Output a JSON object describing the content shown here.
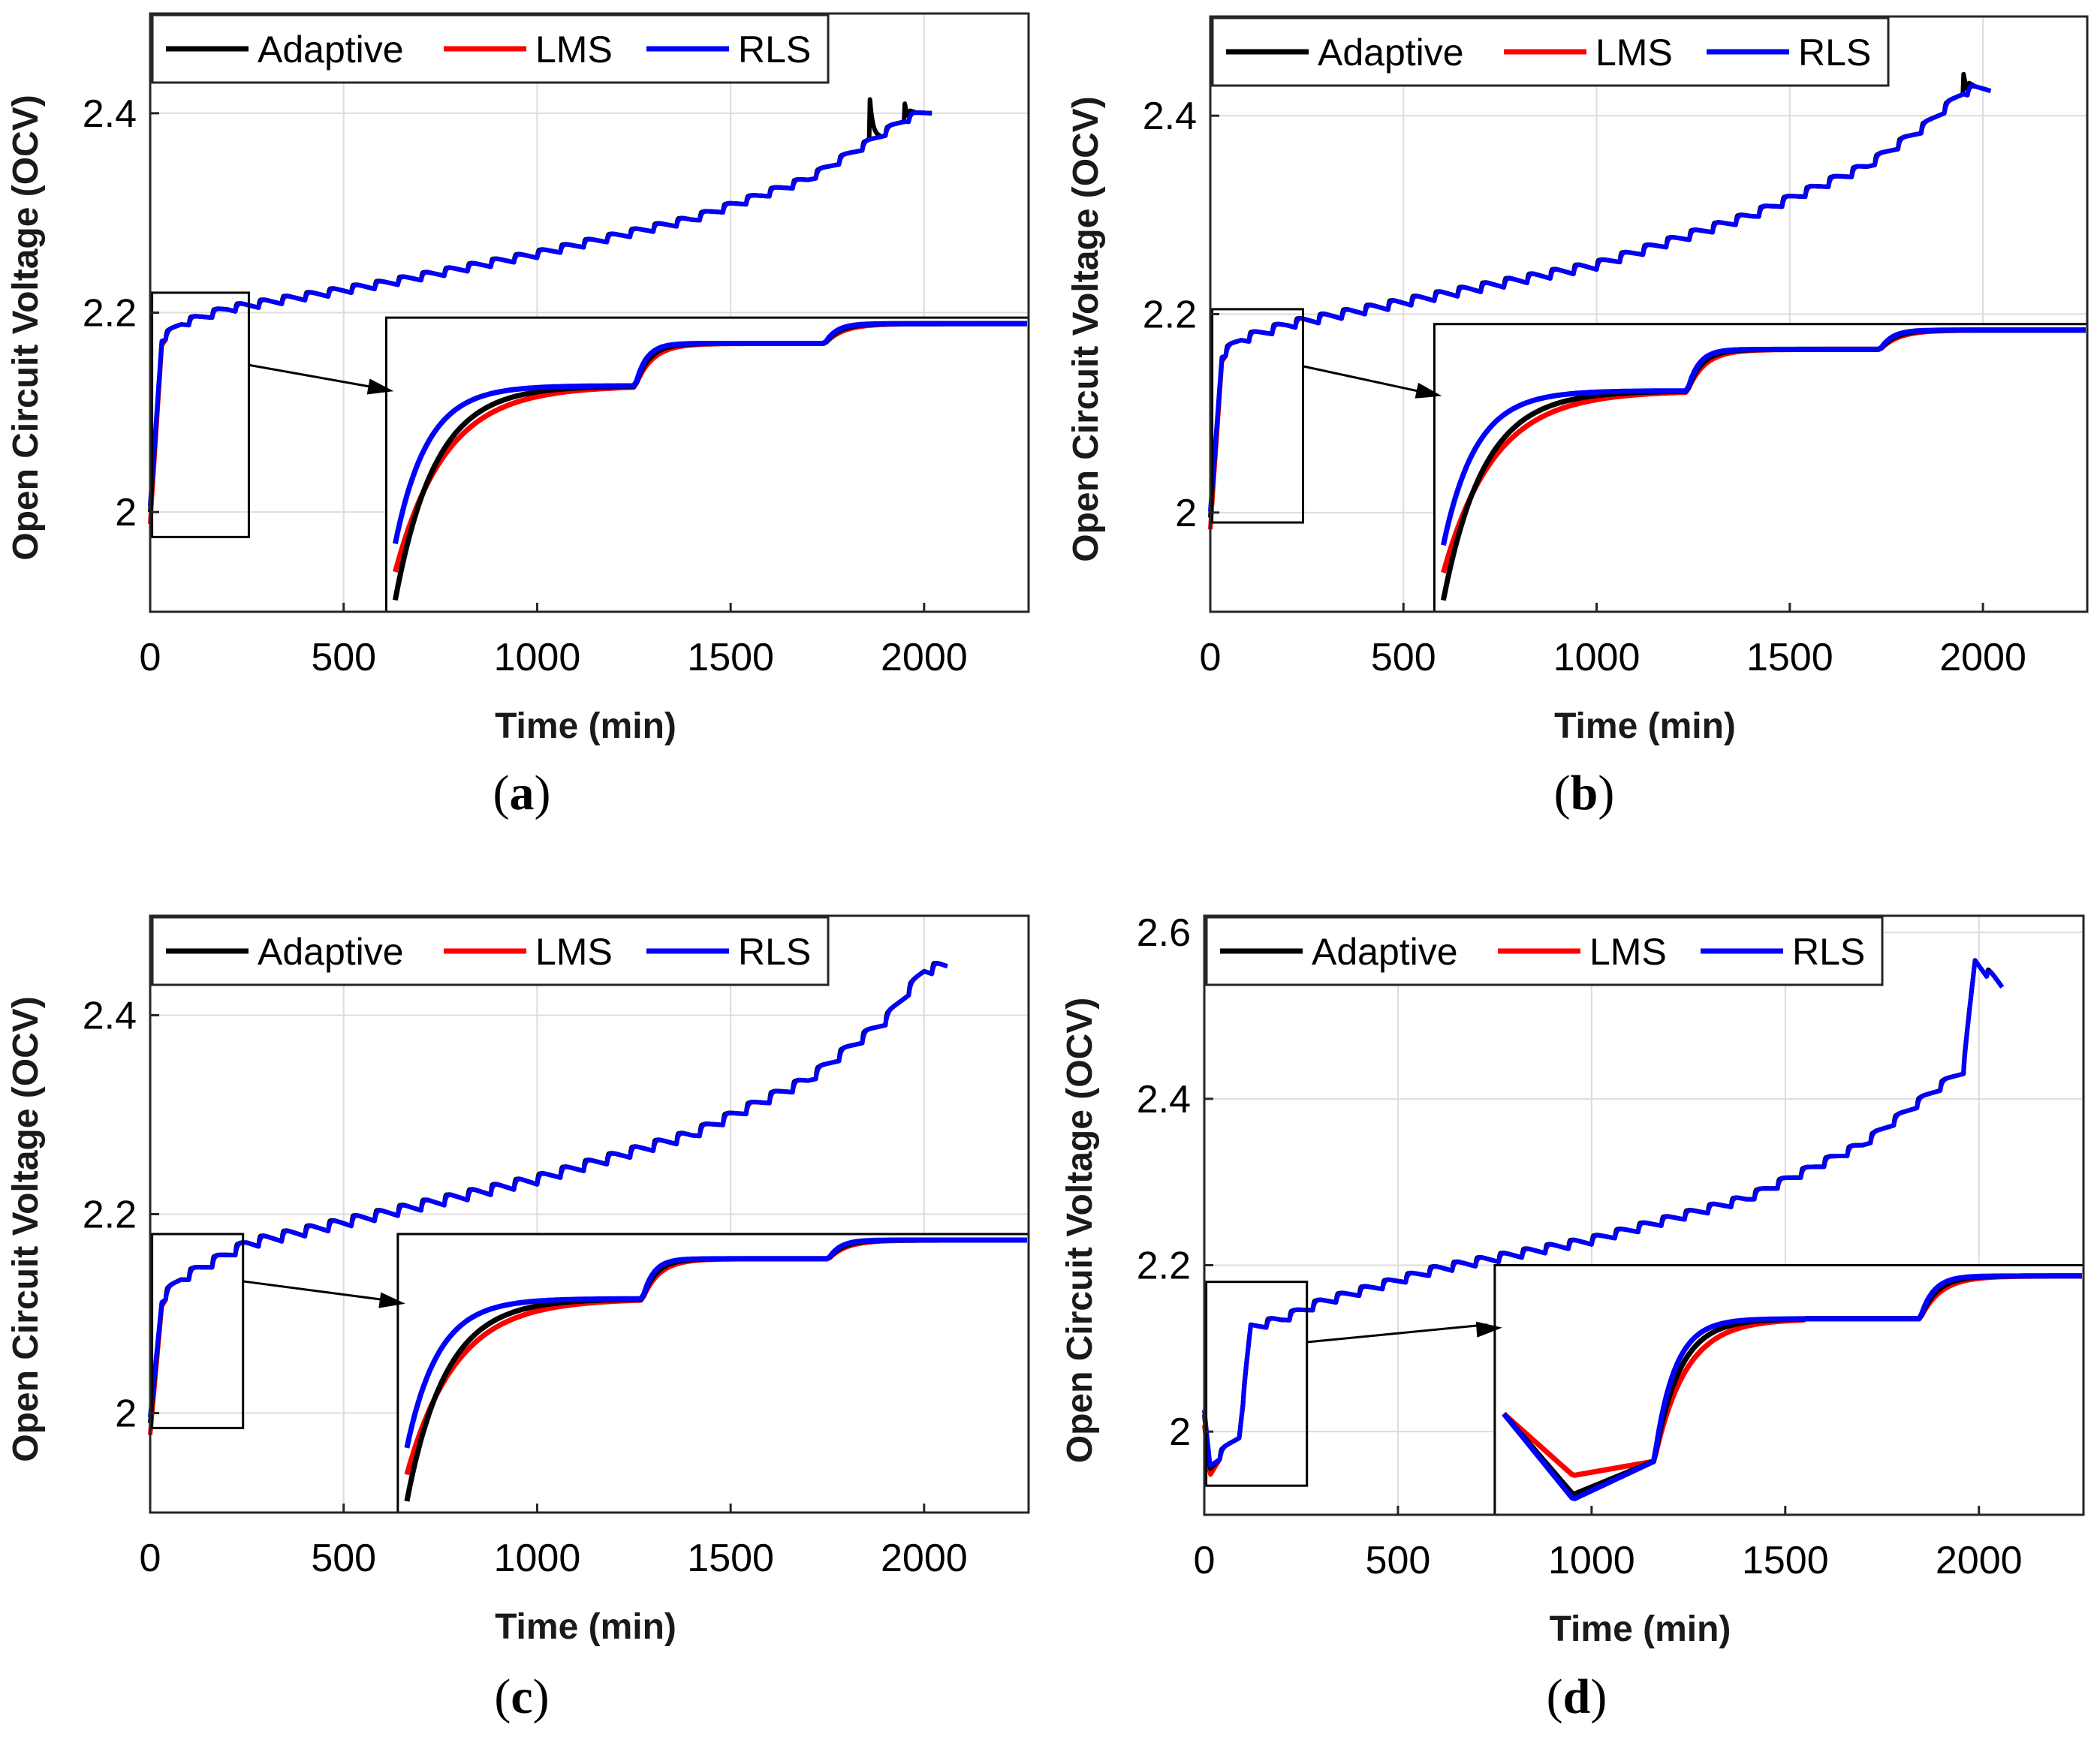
{
  "chart_data": [
    {
      "panel_label": "(a)",
      "panel_letter": "a",
      "type": "line",
      "xlabel": "Time (min)",
      "ylabel": "Open Circuit Voltage (OCV)",
      "xlim": [
        0,
        2270
      ],
      "ylim": [
        1.9,
        2.5
      ],
      "xticks": [
        0,
        500,
        1000,
        1500,
        2000
      ],
      "xtick_labels": [
        "0",
        "500",
        "1000",
        "1500",
        "2000"
      ],
      "yticks": [
        2.0,
        2.2,
        2.4
      ],
      "ytick_labels": [
        "2",
        "2.2",
        "2.4"
      ],
      "grid": true,
      "legend": {
        "position": "top-left",
        "entries": [
          "Adaptive",
          "LMS",
          "RLS"
        ]
      },
      "series": [
        {
          "name": "Adaptive",
          "color": "#000000"
        },
        {
          "name": "LMS",
          "color": "#ff0000"
        },
        {
          "name": "RLS",
          "color": "#0000ff"
        }
      ],
      "ocv_profile": {
        "t0": 0,
        "t_end": 2020,
        "v_start": 2.0,
        "knots": [
          [
            0,
            2.0
          ],
          [
            30,
            2.17
          ],
          [
            80,
            2.185
          ],
          [
            200,
            2.2
          ],
          [
            600,
            2.225
          ],
          [
            1000,
            2.255
          ],
          [
            1400,
            2.29
          ],
          [
            1700,
            2.33
          ],
          [
            1850,
            2.365
          ],
          [
            1950,
            2.39
          ],
          [
            2020,
            2.4
          ]
        ],
        "step_period_min": 60,
        "step_height": 0.006,
        "spikes": [
          [
            1860,
            0.04
          ],
          [
            1950,
            0.018
          ]
        ]
      },
      "zoom_box": {
        "x_range": [
          5,
          255
        ],
        "y_range": [
          1.975,
          2.22
        ]
      },
      "inset": {
        "x_range": [
          610,
          2270
        ],
        "y_range": [
          1.9,
          2.195
        ]
      }
    },
    {
      "panel_label": "(b)",
      "panel_letter": "b",
      "type": "line",
      "xlabel": "Time (min)",
      "ylabel": "Open Circuit Voltage (OCV)",
      "xlim": [
        0,
        2270
      ],
      "ylim": [
        1.9,
        2.5
      ],
      "xticks": [
        0,
        500,
        1000,
        1500,
        2000
      ],
      "xtick_labels": [
        "0",
        "500",
        "1000",
        "1500",
        "2000"
      ],
      "yticks": [
        2.0,
        2.2,
        2.4
      ],
      "ytick_labels": [
        "2",
        "2.2",
        "2.4"
      ],
      "grid": true,
      "legend": {
        "position": "top-left",
        "entries": [
          "Adaptive",
          "LMS",
          "RLS"
        ]
      },
      "series": [
        {
          "name": "Adaptive",
          "color": "#000000"
        },
        {
          "name": "LMS",
          "color": "#ff0000"
        },
        {
          "name": "RLS",
          "color": "#0000ff"
        }
      ],
      "ocv_profile": {
        "t0": 0,
        "t_end": 2020,
        "v_start": 1.995,
        "knots": [
          [
            0,
            1.995
          ],
          [
            30,
            2.155
          ],
          [
            80,
            2.17
          ],
          [
            200,
            2.185
          ],
          [
            600,
            2.215
          ],
          [
            1000,
            2.245
          ],
          [
            1400,
            2.295
          ],
          [
            1700,
            2.345
          ],
          [
            1850,
            2.385
          ],
          [
            1950,
            2.42
          ],
          [
            2020,
            2.425
          ]
        ],
        "step_period_min": 60,
        "step_height": 0.007,
        "spikes": [
          [
            1950,
            0.02
          ]
        ]
      },
      "zoom_box": {
        "x_range": [
          5,
          240
        ],
        "y_range": [
          1.99,
          2.205
        ]
      },
      "inset": {
        "x_range": [
          580,
          2270
        ],
        "y_range": [
          1.9,
          2.19
        ]
      }
    },
    {
      "panel_label": "(c)",
      "panel_letter": "c",
      "type": "line",
      "xlabel": "Time (min)",
      "ylabel": "Open Circuit Voltage (OCV)",
      "xlim": [
        0,
        2270
      ],
      "ylim": [
        1.9,
        2.5
      ],
      "xticks": [
        0,
        500,
        1000,
        1500,
        2000
      ],
      "xtick_labels": [
        "0",
        "500",
        "1000",
        "1500",
        "2000"
      ],
      "yticks": [
        2.0,
        2.2,
        2.4
      ],
      "ytick_labels": [
        "2",
        "2.2",
        "2.4"
      ],
      "grid": true,
      "legend": {
        "position": "top-left",
        "entries": [
          "Adaptive",
          "LMS",
          "RLS"
        ]
      },
      "series": [
        {
          "name": "Adaptive",
          "color": "#000000"
        },
        {
          "name": "LMS",
          "color": "#ff0000"
        },
        {
          "name": "RLS",
          "color": "#0000ff"
        }
      ],
      "ocv_profile": {
        "t0": 0,
        "t_end": 2060,
        "v_start": 1.99,
        "knots": [
          [
            0,
            1.99
          ],
          [
            30,
            2.11
          ],
          [
            80,
            2.13
          ],
          [
            250,
            2.165
          ],
          [
            600,
            2.195
          ],
          [
            1000,
            2.23
          ],
          [
            1400,
            2.275
          ],
          [
            1700,
            2.33
          ],
          [
            1900,
            2.39
          ],
          [
            2000,
            2.44
          ],
          [
            2060,
            2.445
          ]
        ],
        "step_period_min": 60,
        "step_height": 0.008,
        "spikes": []
      },
      "zoom_box": {
        "x_range": [
          5,
          240
        ],
        "y_range": [
          1.985,
          2.18
        ]
      },
      "inset": {
        "x_range": [
          640,
          2270
        ],
        "y_range": [
          1.9,
          2.18
        ]
      }
    },
    {
      "panel_label": "(d)",
      "panel_letter": "d",
      "type": "line",
      "xlabel": "Time (min)",
      "ylabel": "Open Circuit Voltage (OCV)",
      "xlim": [
        0,
        2270
      ],
      "ylim": [
        1.9,
        2.62
      ],
      "xticks": [
        0,
        500,
        1000,
        1500,
        2000
      ],
      "xtick_labels": [
        "0",
        "500",
        "1000",
        "1500",
        "2000"
      ],
      "yticks": [
        2.0,
        2.2,
        2.4,
        2.6
      ],
      "ytick_labels": [
        "2",
        "2.2",
        "2.4",
        "2.6"
      ],
      "grid": true,
      "legend": {
        "position": "top-left",
        "entries": [
          "Adaptive",
          "LMS",
          "RLS"
        ]
      },
      "series": [
        {
          "name": "Adaptive",
          "color": "#000000"
        },
        {
          "name": "LMS",
          "color": "#ff0000"
        },
        {
          "name": "RLS",
          "color": "#0000ff"
        }
      ],
      "ocv_profile": {
        "t0": 0,
        "t_end": 2060,
        "v_start": 2.02,
        "knots": [
          [
            0,
            2.02
          ],
          [
            15,
            1.955
          ],
          [
            90,
            1.99
          ],
          [
            120,
            2.12
          ],
          [
            200,
            2.13
          ],
          [
            300,
            2.15
          ],
          [
            600,
            2.19
          ],
          [
            1000,
            2.225
          ],
          [
            1400,
            2.275
          ],
          [
            1700,
            2.34
          ],
          [
            1900,
            2.41
          ],
          [
            1960,
            2.43
          ],
          [
            1990,
            2.56
          ],
          [
            2060,
            2.53
          ]
        ],
        "step_period_min": 60,
        "step_height": 0.008,
        "spikes": []
      },
      "zoom_box": {
        "x_range": [
          5,
          265
        ],
        "y_range": [
          1.935,
          2.18
        ]
      },
      "inset": {
        "x_range": [
          750,
          2270
        ],
        "y_range": [
          1.9,
          2.2
        ]
      }
    }
  ]
}
